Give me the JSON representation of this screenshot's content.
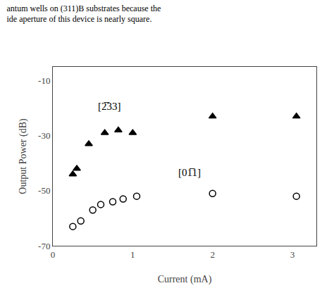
{
  "chart_data": {
    "type": "scatter",
    "subtitle": [
      "antum wells on (311)B substrates because the",
      "ide aperture of this device is nearly square."
    ],
    "xlabel": "Current (mA)",
    "ylabel": "Output Power (dB)",
    "xlim": [
      0,
      3.3
    ],
    "ylim": [
      -70,
      -5
    ],
    "xticks": [
      0,
      1,
      2,
      3
    ],
    "yticks": [
      -70,
      -50,
      -30,
      -10
    ],
    "grid": false,
    "series": [
      {
        "x": [
          0.25,
          0.3,
          0.45,
          0.65,
          0.82,
          1.0,
          2.0,
          3.05
        ],
        "values": [
          -44,
          -42,
          -33,
          -29,
          -28,
          -29,
          -23,
          -23
        ],
        "color": "black",
        "marker": "triangle"
      },
      {
        "x": [
          0.25,
          0.35,
          0.5,
          0.6,
          0.75,
          0.88,
          1.05,
          2.0,
          3.05
        ],
        "values": [
          -63,
          -61,
          -57,
          -55,
          -54,
          -53,
          -52,
          -51,
          -52
        ],
        "color": "black",
        "marker": "circle-open"
      }
    ],
    "annotations": [
      {
        "text": "[2̅33]",
        "x": 0.55,
        "y": -22
      },
      {
        "text": "[01̅1]",
        "x": 1.55,
        "y": -46
      }
    ]
  }
}
